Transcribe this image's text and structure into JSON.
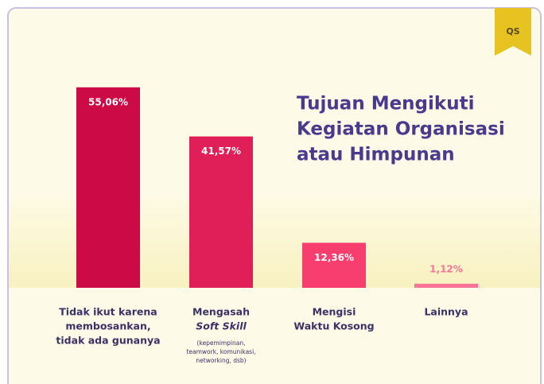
{
  "badge": "QS",
  "chart_data": {
    "type": "bar",
    "title": [
      "Tujuan Mengikuti",
      "Kegiatan Organisasi",
      "atau Himpunan"
    ],
    "categories": [
      [
        "Tidak ikut karena",
        "membosankan,",
        "tidak ada gunanya"
      ],
      [
        "Mengasah",
        "Soft Skill"
      ],
      [
        "Mengisi",
        "Waktu Kosong"
      ],
      [
        "Lainnya"
      ]
    ],
    "category_notes": [
      null,
      [
        "(kepemimpinan,",
        "teamwork, komunikasi,",
        "networking, dsb)"
      ],
      null,
      null
    ],
    "values": [
      55.06,
      41.57,
      12.36,
      1.12
    ],
    "value_labels": [
      "55,06%",
      "41,57%",
      "12,36%",
      "1,12%"
    ],
    "colors": [
      "#cc0a45",
      "#e01e58",
      "#f73e6e",
      "#f87596"
    ]
  }
}
